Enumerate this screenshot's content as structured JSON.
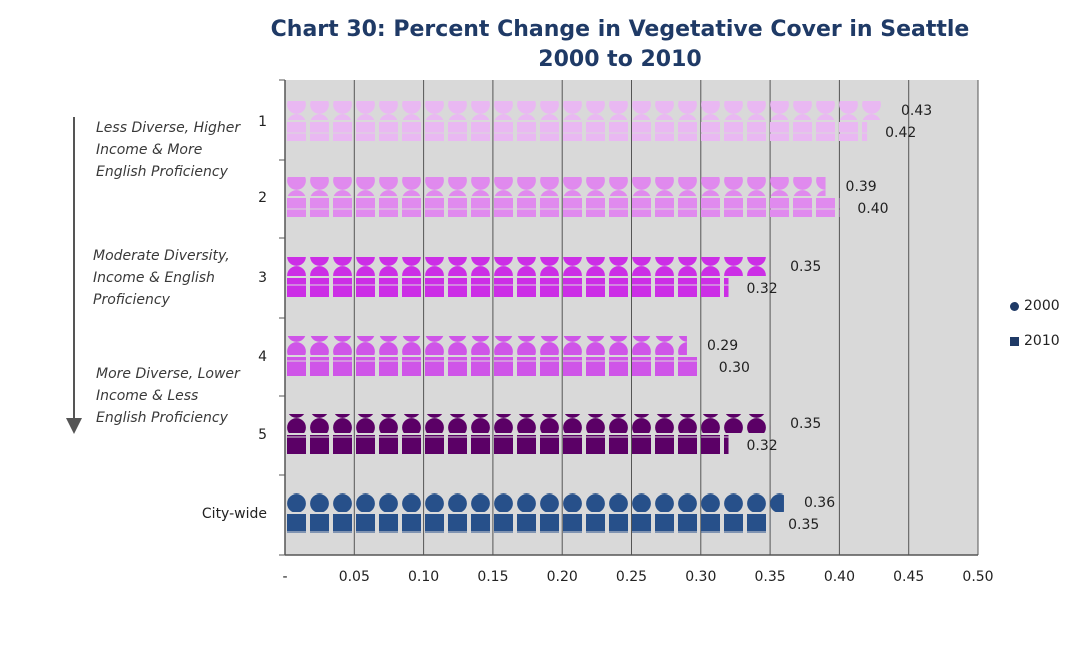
{
  "chart_data": {
    "type": "bar",
    "title": "Chart 30: Percent Change in Vegetative Cover in Seattle",
    "subtitle": "2000 to 2010",
    "categories": [
      "1",
      "2",
      "3",
      "4",
      "5",
      "City-wide"
    ],
    "series": [
      {
        "name": "2000",
        "values": [
          0.43,
          0.39,
          0.35,
          0.29,
          0.35,
          0.36
        ]
      },
      {
        "name": "2010",
        "values": [
          0.42,
          0.4,
          0.32,
          0.3,
          0.32,
          0.35
        ]
      }
    ],
    "value_labels_2000": [
      "0.43",
      "0.39",
      "0.35",
      "0.29",
      "0.35",
      "0.36"
    ],
    "value_labels_2010": [
      "0.42",
      "0.40",
      "0.32",
      "0.30",
      "0.32",
      "0.35"
    ],
    "xticks": [
      "-",
      "0.05",
      "0.10",
      "0.15",
      "0.20",
      "0.25",
      "0.30",
      "0.35",
      "0.40",
      "0.45",
      "0.50"
    ],
    "xlim": [
      0,
      0.5
    ],
    "grid": true,
    "legend_position": "right",
    "colors": {
      "cat1": "#e9b8f2",
      "cat2": "#e08aee",
      "cat3": "#cc2ee6",
      "cat4": "#cf55e8",
      "cat5": "#5b0066",
      "citywide": "#27508a",
      "plot_bg": "#d9d9d9",
      "title": "#1f3a66"
    },
    "annotations": [
      {
        "text_lines": [
          "Less Diverse, Higher",
          "Income & More",
          "English Proficiency"
        ]
      },
      {
        "text_lines": [
          "Moderate Diversity,",
          "Income & English",
          "Proficiency"
        ]
      },
      {
        "text_lines": [
          "More Diverse, Lower",
          "Income & Less",
          "English Proficiency"
        ]
      }
    ]
  }
}
